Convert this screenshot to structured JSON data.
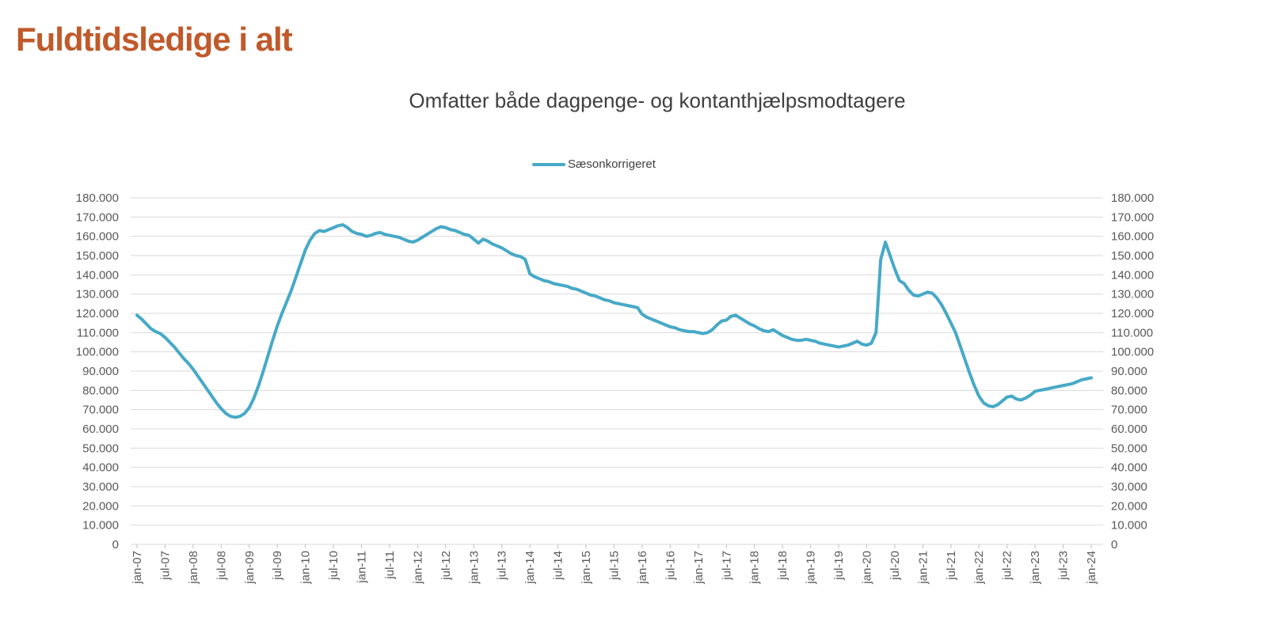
{
  "page": {
    "title": "Fuldtidsledige i alt"
  },
  "colors": {
    "page_title": "#C05A2B",
    "chart_title_text": "#3F3F3F",
    "legend_text": "#404040",
    "series_line": "#47A9C7",
    "gridline": "#D9D9D9",
    "tick_mark": "#BFBFBF",
    "axis_text": "#595959",
    "background": "#FFFFFF"
  },
  "chart_data": {
    "type": "line",
    "title": "Omfatter både dagpenge- og kontanthjælpsmodtagere",
    "legend": {
      "label": "Sæsonkorrigeret",
      "position": "top-center"
    },
    "frequency": "monthly",
    "x_start": "jan-07",
    "x_end": "jan-24",
    "x_tick_labels": [
      "jan-07",
      "jul-07",
      "jan-08",
      "jul-08",
      "jan-09",
      "jul-09",
      "jan-10",
      "jul-10",
      "jan-11",
      "jul-11",
      "jan-12",
      "jul-12",
      "jan-13",
      "jul-13",
      "jan-14",
      "jul-14",
      "jan-15",
      "jul-15",
      "jan-16",
      "jul-16",
      "jan-17",
      "jul-17",
      "jan-18",
      "jul-18",
      "jan-19",
      "jul-19",
      "jan-20",
      "jul-20",
      "jan-21",
      "jul-21",
      "jan-22",
      "jul-22",
      "jan-23",
      "jul-23",
      "jan-24"
    ],
    "ylim": [
      0,
      180000
    ],
    "y_tick_step": 10000,
    "y_tick_labels": [
      "0",
      "10.000",
      "20.000",
      "30.000",
      "40.000",
      "50.000",
      "60.000",
      "70.000",
      "80.000",
      "90.000",
      "100.000",
      "110.000",
      "120.000",
      "130.000",
      "140.000",
      "150.000",
      "160.000",
      "170.000",
      "180.000"
    ],
    "y_axis_sides": "both",
    "grid": true,
    "series": [
      {
        "name": "Sæsonkorrigeret",
        "color": "#47A9C7",
        "values": [
          119000,
          117000,
          114500,
          112000,
          110500,
          109500,
          107500,
          105000,
          102500,
          99500,
          96500,
          94000,
          91000,
          87500,
          84000,
          80500,
          77000,
          73500,
          70500,
          68000,
          66500,
          66000,
          66500,
          68000,
          71000,
          76000,
          82500,
          90000,
          98000,
          106000,
          113500,
          120000,
          126000,
          132000,
          139000,
          146000,
          153000,
          158000,
          161500,
          163000,
          162500,
          163500,
          164500,
          165500,
          166000,
          164500,
          162500,
          161500,
          161000,
          160000,
          160500,
          161500,
          162000,
          161000,
          160500,
          160000,
          159500,
          158500,
          157500,
          157000,
          158000,
          159500,
          161000,
          162500,
          164000,
          165000,
          164500,
          163500,
          163000,
          162000,
          161000,
          160500,
          158500,
          156500,
          158500,
          157500,
          156000,
          155000,
          154000,
          152500,
          151000,
          150000,
          149500,
          148000,
          140500,
          139000,
          138000,
          137000,
          136500,
          135500,
          135000,
          134500,
          134000,
          133000,
          132500,
          131500,
          130500,
          129500,
          129000,
          128000,
          127000,
          126500,
          125500,
          125000,
          124500,
          124000,
          123500,
          123000,
          119500,
          118000,
          117000,
          116000,
          115000,
          114000,
          113000,
          112500,
          111500,
          111000,
          110500,
          110500,
          110000,
          109500,
          110000,
          111500,
          114000,
          116000,
          116500,
          118500,
          119000,
          117500,
          116000,
          114500,
          113500,
          112000,
          111000,
          110500,
          111500,
          110000,
          108500,
          107500,
          106500,
          106000,
          106000,
          106500,
          106000,
          105500,
          104500,
          104000,
          103500,
          103000,
          102500,
          103000,
          103500,
          104500,
          105500,
          104000,
          103500,
          104500,
          110000,
          148000,
          157000,
          150000,
          143000,
          137000,
          135500,
          132000,
          129500,
          129000,
          130000,
          131000,
          130500,
          128000,
          124500,
          120000,
          115000,
          110000,
          103000,
          96000,
          89000,
          82500,
          77000,
          73500,
          72000,
          71500,
          72500,
          74500,
          76500,
          77000,
          75500,
          75000,
          76000,
          77500,
          79500,
          80000,
          80500,
          81000,
          81500,
          82000,
          82500,
          83000,
          83500,
          84500,
          85500,
          86000,
          86500
        ]
      }
    ]
  }
}
